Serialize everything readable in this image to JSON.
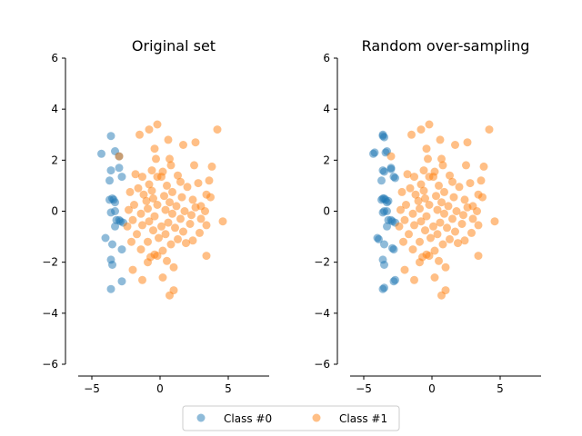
{
  "chart_data": [
    {
      "type": "scatter",
      "title": "Original set",
      "xlim": [
        -6.0,
        8.0
      ],
      "ylim": [
        -6.0,
        6.0
      ],
      "xticks": [
        -5,
        0,
        5
      ],
      "yticks": [
        -6,
        -4,
        -2,
        0,
        2,
        4,
        6
      ],
      "series": [
        {
          "name": "Class #0",
          "points": [
            [
              -3.6,
              2.95
            ],
            [
              -4.3,
              2.25
            ],
            [
              -3.3,
              2.35
            ],
            [
              -3.0,
              2.15
            ],
            [
              -3.0,
              1.7
            ],
            [
              -3.6,
              1.6
            ],
            [
              -2.8,
              1.35
            ],
            [
              -3.7,
              1.2
            ],
            [
              -3.7,
              0.45
            ],
            [
              -3.5,
              0.5
            ],
            [
              -3.4,
              0.45
            ],
            [
              -3.3,
              0.35
            ],
            [
              -3.3,
              0.0
            ],
            [
              -3.6,
              -0.05
            ],
            [
              -3.2,
              -0.35
            ],
            [
              -2.9,
              -0.4
            ],
            [
              -3.0,
              -0.35
            ],
            [
              -2.7,
              -0.45
            ],
            [
              -3.3,
              -0.6
            ],
            [
              -4.0,
              -1.05
            ],
            [
              -3.5,
              -1.3
            ],
            [
              -2.8,
              -1.5
            ],
            [
              -3.6,
              -1.9
            ],
            [
              -3.5,
              -2.1
            ],
            [
              -2.8,
              -2.75
            ],
            [
              -3.6,
              -3.05
            ]
          ]
        },
        {
          "name": "Class #1",
          "points": [
            [
              -0.2,
              3.4
            ],
            [
              -1.5,
              3.0
            ],
            [
              -0.8,
              3.2
            ],
            [
              0.6,
              2.8
            ],
            [
              1.7,
              2.6
            ],
            [
              4.2,
              3.2
            ],
            [
              -0.4,
              2.45
            ],
            [
              -0.3,
              2.05
            ],
            [
              0.7,
              2.05
            ],
            [
              2.6,
              2.7
            ],
            [
              -3.0,
              2.15
            ],
            [
              0.8,
              1.8
            ],
            [
              0.2,
              1.55
            ],
            [
              -0.6,
              1.6
            ],
            [
              1.3,
              1.4
            ],
            [
              2.5,
              1.8
            ],
            [
              3.8,
              1.75
            ],
            [
              -0.2,
              1.35
            ],
            [
              -1.8,
              1.45
            ],
            [
              -1.3,
              1.35
            ],
            [
              0.1,
              1.35
            ],
            [
              1.5,
              1.15
            ],
            [
              2.8,
              1.1
            ],
            [
              3.6,
              1.2
            ],
            [
              -0.8,
              1.05
            ],
            [
              0.5,
              1.0
            ],
            [
              -1.6,
              0.9
            ],
            [
              2.0,
              0.95
            ],
            [
              -0.6,
              0.8
            ],
            [
              0.9,
              0.75
            ],
            [
              3.4,
              0.65
            ],
            [
              -2.2,
              0.75
            ],
            [
              -1.2,
              0.65
            ],
            [
              0.3,
              0.6
            ],
            [
              1.6,
              0.55
            ],
            [
              3.7,
              0.55
            ],
            [
              -0.5,
              0.5
            ],
            [
              2.4,
              0.45
            ],
            [
              -1.0,
              0.4
            ],
            [
              0.7,
              0.35
            ],
            [
              3.0,
              0.2
            ],
            [
              -1.9,
              0.25
            ],
            [
              -0.2,
              0.25
            ],
            [
              1.2,
              0.2
            ],
            [
              2.6,
              0.15
            ],
            [
              -2.3,
              0.05
            ],
            [
              -0.9,
              0.1
            ],
            [
              0.4,
              0.05
            ],
            [
              1.8,
              0.0
            ],
            [
              3.3,
              0.0
            ],
            [
              -1.4,
              -0.1
            ],
            [
              0.9,
              -0.1
            ],
            [
              2.3,
              -0.15
            ],
            [
              -0.4,
              -0.2
            ],
            [
              1.5,
              -0.3
            ],
            [
              3.0,
              -0.3
            ],
            [
              -2.0,
              -0.35
            ],
            [
              -0.8,
              -0.4
            ],
            [
              0.6,
              -0.45
            ],
            [
              4.6,
              -0.4
            ],
            [
              2.2,
              -0.5
            ],
            [
              -1.3,
              -0.55
            ],
            [
              0.1,
              -0.6
            ],
            [
              1.1,
              -0.65
            ],
            [
              3.4,
              -0.55
            ],
            [
              -2.4,
              -0.6
            ],
            [
              -0.5,
              -0.75
            ],
            [
              1.7,
              -0.8
            ],
            [
              2.9,
              -0.85
            ],
            [
              -1.7,
              -0.9
            ],
            [
              0.4,
              -0.9
            ],
            [
              -0.1,
              -1.05
            ],
            [
              1.3,
              -1.1
            ],
            [
              2.4,
              -1.15
            ],
            [
              -2.1,
              -1.2
            ],
            [
              -0.9,
              -1.2
            ],
            [
              0.8,
              -1.3
            ],
            [
              1.9,
              -1.25
            ],
            [
              -1.4,
              -1.5
            ],
            [
              0.2,
              -1.55
            ],
            [
              -0.4,
              -1.7
            ],
            [
              3.4,
              -1.75
            ],
            [
              -0.7,
              -1.8
            ],
            [
              0.5,
              -1.95
            ],
            [
              1.0,
              -2.2
            ],
            [
              -2.0,
              -2.3
            ],
            [
              -0.9,
              -2.0
            ],
            [
              -1.3,
              -2.7
            ],
            [
              0.2,
              -2.6
            ],
            [
              1.0,
              -3.1
            ],
            [
              0.7,
              -3.3
            ],
            [
              -0.2,
              -1.75
            ]
          ]
        }
      ]
    },
    {
      "type": "scatter",
      "title": "Random over-sampling",
      "xlim": [
        -6.0,
        8.0
      ],
      "ylim": [
        -6.0,
        6.0
      ],
      "xticks": [
        -5,
        0,
        5
      ],
      "yticks": [
        -6,
        -4,
        -2,
        0,
        2,
        4,
        6
      ],
      "series": [
        {
          "name": "Class #0",
          "points": [
            [
              -3.6,
              2.95
            ],
            [
              -3.6,
              3.0
            ],
            [
              -3.5,
              2.9
            ],
            [
              -4.3,
              2.25
            ],
            [
              -4.2,
              2.3
            ],
            [
              -3.3,
              2.35
            ],
            [
              -3.4,
              2.3
            ],
            [
              -3.0,
              1.7
            ],
            [
              -3.0,
              1.65
            ],
            [
              -3.6,
              1.6
            ],
            [
              -3.5,
              1.55
            ],
            [
              -2.8,
              1.35
            ],
            [
              -2.7,
              1.3
            ],
            [
              -3.7,
              1.2
            ],
            [
              -3.7,
              0.45
            ],
            [
              -3.6,
              0.5
            ],
            [
              -3.5,
              0.5
            ],
            [
              -3.4,
              0.45
            ],
            [
              -3.3,
              0.35
            ],
            [
              -3.2,
              0.4
            ],
            [
              -3.3,
              0.0
            ],
            [
              -3.6,
              -0.05
            ],
            [
              -3.5,
              0.0
            ],
            [
              -3.2,
              -0.35
            ],
            [
              -2.9,
              -0.4
            ],
            [
              -3.0,
              -0.35
            ],
            [
              -2.7,
              -0.45
            ],
            [
              -3.3,
              -0.6
            ],
            [
              -4.0,
              -1.05
            ],
            [
              -3.9,
              -1.1
            ],
            [
              -3.5,
              -1.3
            ],
            [
              -2.8,
              -1.5
            ],
            [
              -2.9,
              -1.45
            ],
            [
              -3.6,
              -1.9
            ],
            [
              -3.5,
              -2.1
            ],
            [
              -2.8,
              -2.75
            ],
            [
              -2.7,
              -2.7
            ],
            [
              -3.6,
              -3.05
            ],
            [
              -3.5,
              -3.0
            ]
          ]
        },
        {
          "name": "Class #1",
          "points": [
            [
              -0.2,
              3.4
            ],
            [
              -1.5,
              3.0
            ],
            [
              -0.8,
              3.2
            ],
            [
              0.6,
              2.8
            ],
            [
              1.7,
              2.6
            ],
            [
              4.2,
              3.2
            ],
            [
              -0.4,
              2.45
            ],
            [
              -0.3,
              2.05
            ],
            [
              0.7,
              2.05
            ],
            [
              2.6,
              2.7
            ],
            [
              -3.0,
              2.15
            ],
            [
              0.8,
              1.8
            ],
            [
              0.2,
              1.55
            ],
            [
              -0.6,
              1.6
            ],
            [
              1.3,
              1.4
            ],
            [
              2.5,
              1.8
            ],
            [
              3.8,
              1.75
            ],
            [
              -0.2,
              1.35
            ],
            [
              -1.8,
              1.45
            ],
            [
              -1.3,
              1.35
            ],
            [
              0.1,
              1.35
            ],
            [
              1.5,
              1.15
            ],
            [
              2.8,
              1.1
            ],
            [
              3.6,
              1.2
            ],
            [
              -0.8,
              1.05
            ],
            [
              0.5,
              1.0
            ],
            [
              -1.6,
              0.9
            ],
            [
              2.0,
              0.95
            ],
            [
              -0.6,
              0.8
            ],
            [
              0.9,
              0.75
            ],
            [
              3.4,
              0.65
            ],
            [
              -2.2,
              0.75
            ],
            [
              -1.2,
              0.65
            ],
            [
              0.3,
              0.6
            ],
            [
              1.6,
              0.55
            ],
            [
              3.7,
              0.55
            ],
            [
              -0.5,
              0.5
            ],
            [
              2.4,
              0.45
            ],
            [
              -1.0,
              0.4
            ],
            [
              0.7,
              0.35
            ],
            [
              3.0,
              0.2
            ],
            [
              -1.9,
              0.25
            ],
            [
              -0.2,
              0.25
            ],
            [
              1.2,
              0.2
            ],
            [
              2.6,
              0.15
            ],
            [
              -2.3,
              0.05
            ],
            [
              -0.9,
              0.1
            ],
            [
              0.4,
              0.05
            ],
            [
              1.8,
              0.0
            ],
            [
              3.3,
              0.0
            ],
            [
              -1.4,
              -0.1
            ],
            [
              0.9,
              -0.1
            ],
            [
              2.3,
              -0.15
            ],
            [
              -0.4,
              -0.2
            ],
            [
              1.5,
              -0.3
            ],
            [
              3.0,
              -0.3
            ],
            [
              -2.0,
              -0.35
            ],
            [
              -0.8,
              -0.4
            ],
            [
              0.6,
              -0.45
            ],
            [
              4.6,
              -0.4
            ],
            [
              2.2,
              -0.5
            ],
            [
              -1.3,
              -0.55
            ],
            [
              0.1,
              -0.6
            ],
            [
              1.1,
              -0.65
            ],
            [
              3.4,
              -0.55
            ],
            [
              -2.4,
              -0.6
            ],
            [
              -0.5,
              -0.75
            ],
            [
              1.7,
              -0.8
            ],
            [
              2.9,
              -0.85
            ],
            [
              -1.7,
              -0.9
            ],
            [
              0.4,
              -0.9
            ],
            [
              -0.1,
              -1.05
            ],
            [
              1.3,
              -1.1
            ],
            [
              2.4,
              -1.15
            ],
            [
              -2.1,
              -1.2
            ],
            [
              -0.9,
              -1.2
            ],
            [
              0.8,
              -1.3
            ],
            [
              1.9,
              -1.25
            ],
            [
              -1.4,
              -1.5
            ],
            [
              0.2,
              -1.55
            ],
            [
              -0.4,
              -1.7
            ],
            [
              3.4,
              -1.75
            ],
            [
              -0.7,
              -1.8
            ],
            [
              0.5,
              -1.95
            ],
            [
              1.0,
              -2.2
            ],
            [
              -2.0,
              -2.3
            ],
            [
              -0.9,
              -2.0
            ],
            [
              -1.3,
              -2.7
            ],
            [
              0.2,
              -2.6
            ],
            [
              1.0,
              -3.1
            ],
            [
              0.7,
              -3.3
            ],
            [
              -0.2,
              -1.75
            ]
          ]
        }
      ]
    }
  ],
  "legend": {
    "location": "bottom-center",
    "entries": [
      {
        "label": "Class #0",
        "color": "#1f77b4"
      },
      {
        "label": "Class #1",
        "color": "#ff7f0e"
      }
    ]
  },
  "colors": {
    "class0": "#1f77b4",
    "class1": "#ff7f0e",
    "axis": "#000000"
  }
}
